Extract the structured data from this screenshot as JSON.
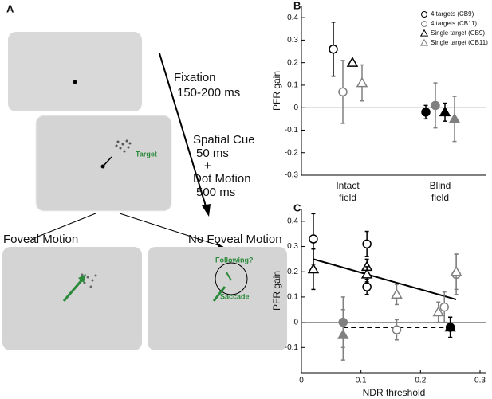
{
  "panel_a": {
    "label": "A",
    "fixation": "Fixation",
    "fixation_time": "150-200 ms",
    "cue": "Spatial Cue",
    "cue_time": "50 ms",
    "plus": "+",
    "motion": "Dot Motion",
    "motion_time": "500 ms",
    "target": "Target",
    "foveal": "Foveal Motion",
    "no_foveal": "No Foveal Motion",
    "following": "Following?",
    "saccade": "Saccade"
  },
  "chart_data": [
    {
      "type": "errorbar",
      "label": "B",
      "ylabel": "PFR gain",
      "categories": [
        "Intact field",
        "Blind field"
      ],
      "ylim": [
        -0.3,
        0.45
      ],
      "yticks": [
        -0.3,
        -0.2,
        -0.1,
        0,
        0.1,
        0.2,
        0.3,
        0.4
      ],
      "series": [
        {
          "name": "4 targets (CB9)",
          "marker": "circle",
          "color": "#000000",
          "values": [
            0.26,
            -0.02
          ],
          "errors": [
            0.12,
            0.03
          ]
        },
        {
          "name": "4 targets (CB11)",
          "marker": "circle",
          "color": "#808080",
          "values": [
            0.07,
            0.01
          ],
          "errors": [
            0.14,
            0.1
          ]
        },
        {
          "name": "Single target (CB9)",
          "marker": "triangle",
          "color": "#000000",
          "values": [
            0.2,
            -0.02
          ],
          "errors": [
            0.01,
            0.04
          ]
        },
        {
          "name": "Single target (CB11)",
          "marker": "triangle",
          "color": "#808080",
          "values": [
            0.11,
            -0.05
          ],
          "errors": [
            0.08,
            0.1
          ]
        }
      ],
      "filled": [
        false,
        true
      ],
      "legend": "upper right"
    },
    {
      "type": "scatter",
      "label": "C",
      "ylabel": "PFR gain",
      "xlabel": "NDR threshold",
      "xlim": [
        0,
        0.3
      ],
      "xticks": [
        0,
        0.1,
        0.2,
        0.3
      ],
      "ylim": [
        -0.2,
        0.45
      ],
      "yticks": [
        -0.1,
        0,
        0.1,
        0.2,
        0.3,
        0.4
      ],
      "series": [
        {
          "marker": "circle",
          "color": "#000000",
          "filled": false,
          "x": [
            0.02,
            0.11,
            0.11
          ],
          "values": [
            0.33,
            0.31,
            0.14
          ],
          "errors": [
            0.1,
            0.05,
            0.03
          ]
        },
        {
          "marker": "triangle",
          "color": "#000000",
          "filled": false,
          "x": [
            0.02,
            0.11,
            0.11
          ],
          "values": [
            0.21,
            0.22,
            0.19
          ],
          "errors": [
            0.08,
            0.03,
            0.03
          ]
        },
        {
          "marker": "circle",
          "color": "#808080",
          "filled": false,
          "x": [
            0.16,
            0.24,
            0.26
          ],
          "values": [
            -0.03,
            0.06,
            0.19
          ],
          "errors": [
            0.04,
            0.06,
            0.08
          ]
        },
        {
          "marker": "triangle",
          "color": "#808080",
          "filled": false,
          "x": [
            0.16,
            0.23,
            0.26
          ],
          "values": [
            0.11,
            0.04,
            0.2
          ],
          "errors": [
            0.04,
            0.04,
            0.07
          ]
        },
        {
          "marker": "circle",
          "color": "#808080",
          "filled": true,
          "x": [
            0.07
          ],
          "values": [
            0.0
          ],
          "errors": [
            0.1
          ]
        },
        {
          "marker": "triangle",
          "color": "#808080",
          "filled": true,
          "x": [
            0.07
          ],
          "values": [
            -0.05
          ],
          "errors": [
            0.1
          ]
        },
        {
          "marker": "circle",
          "color": "#000000",
          "filled": true,
          "x": [
            0.25
          ],
          "values": [
            -0.02
          ],
          "errors": [
            0.04
          ]
        },
        {
          "marker": "triangle",
          "color": "#000000",
          "filled": true,
          "x": [
            0.25
          ],
          "values": [
            -0.02
          ],
          "errors": [
            0.04
          ]
        }
      ],
      "lines": [
        {
          "x": [
            0.02,
            0.26
          ],
          "values": [
            0.25,
            0.09
          ],
          "dashed": false
        },
        {
          "x": [
            0.07,
            0.25
          ],
          "values": [
            -0.02,
            -0.02
          ],
          "dashed": true
        }
      ]
    }
  ]
}
